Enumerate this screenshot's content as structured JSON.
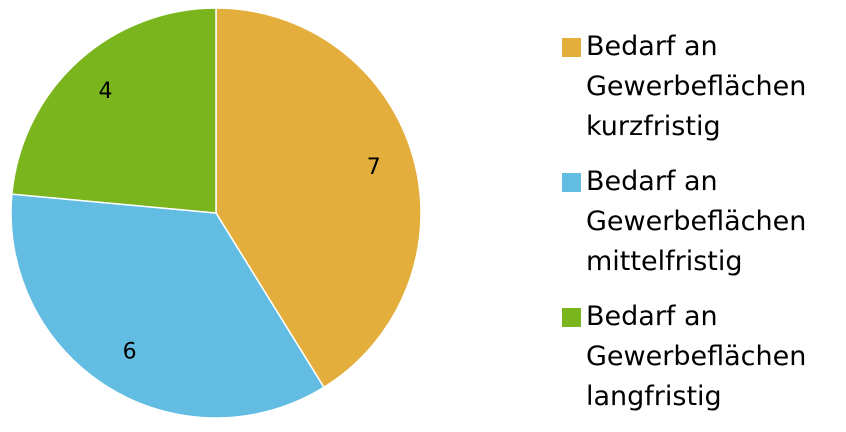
{
  "chart_data": {
    "type": "pie",
    "categories": [
      "Bedarf an Gewerbeflächen kurzfristig",
      "Bedarf an Gewerbeflächen mittelfristig",
      "Bedarf an Gewerbeflächen langfristig"
    ],
    "values": [
      7,
      6,
      4
    ],
    "colors": [
      "#E3AE3C",
      "#63BDE2",
      "#7AB51D"
    ],
    "legend": "right"
  }
}
